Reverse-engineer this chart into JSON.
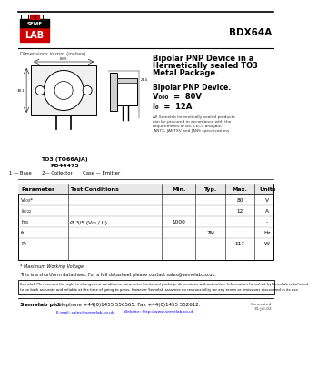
{
  "title": "BDX64A",
  "dimensions_label": "Dimensions in mm (inches).",
  "description_lines": [
    "Bipolar PNP Device in a",
    "Hermetically sealed TO3",
    "Metal Package."
  ],
  "device_title": "Bipolar PNP Device.",
  "vceo_line": "V₀₀₀ = 80V",
  "ic_line": "I₀ = 12A",
  "mil_lines": [
    "All Semelab hermetically sealed products",
    "can be procured in accordance with the",
    "requirements of BS, CECC and JAN,",
    "JANTX, JANTXV and JANS specifications."
  ],
  "package_label1": "TO3 (TO66AJA)",
  "package_label2": "PD44475",
  "pin_labels": "1 — Base       2— Collector       Case — Emitter",
  "table_headers": [
    "Parameter",
    "Test Conditions",
    "Min.",
    "Typ.",
    "Max.",
    "Units"
  ],
  "table_rows": [
    [
      "V₀₀₀*",
      "",
      "",
      "",
      "80",
      "V"
    ],
    [
      "I₀₀₀₂",
      "",
      "",
      "",
      "12",
      "A"
    ],
    [
      "h₀₀",
      "Ø 3/5 (V₀₀ / I₂)",
      "1000",
      "",
      "",
      "-"
    ],
    [
      "f₄",
      "",
      "",
      "7M",
      "",
      "Hz"
    ],
    [
      "P₀",
      "",
      "",
      "",
      "117",
      "W"
    ]
  ],
  "footnote": "* Maximum Working Voltage",
  "shortform": "This is a shortform datasheet. For a full datasheet please contact sales@semelab.co.uk.",
  "disclaimer_lines": [
    "Semelab Plc reserves the right to change test conditions, parameter limits and package dimensions without notice. Information furnished by Semelab is believed",
    "to be both accurate and reliable at the time of going to press. However Semelab assumes no responsibility for any errors or omissions discovered in its use."
  ],
  "footer_company": "Semelab plc.",
  "footer_tel": "Telephone +44(0)1455 556565. Fax +44(0)1455 552612.",
  "footer_email": "E-mail: sales@semelab.co.uk",
  "footer_web": "Website: http://www.semelab.co.uk",
  "footer_date": "Generated\n31-Jul-02",
  "red_color": "#cc0000",
  "bg_color": "#ffffff"
}
